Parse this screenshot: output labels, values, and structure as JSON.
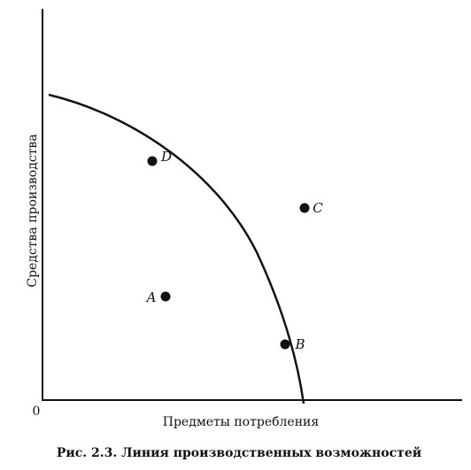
{
  "figure": {
    "y_axis_label": "Средства производства",
    "x_axis_label": "Предметы потребления",
    "origin": "0",
    "points": [
      {
        "label": "A"
      },
      {
        "label": "B"
      },
      {
        "label": "C"
      },
      {
        "label": "D"
      }
    ],
    "caption": "Рис. 2.3. Линия производственных возможностей"
  }
}
